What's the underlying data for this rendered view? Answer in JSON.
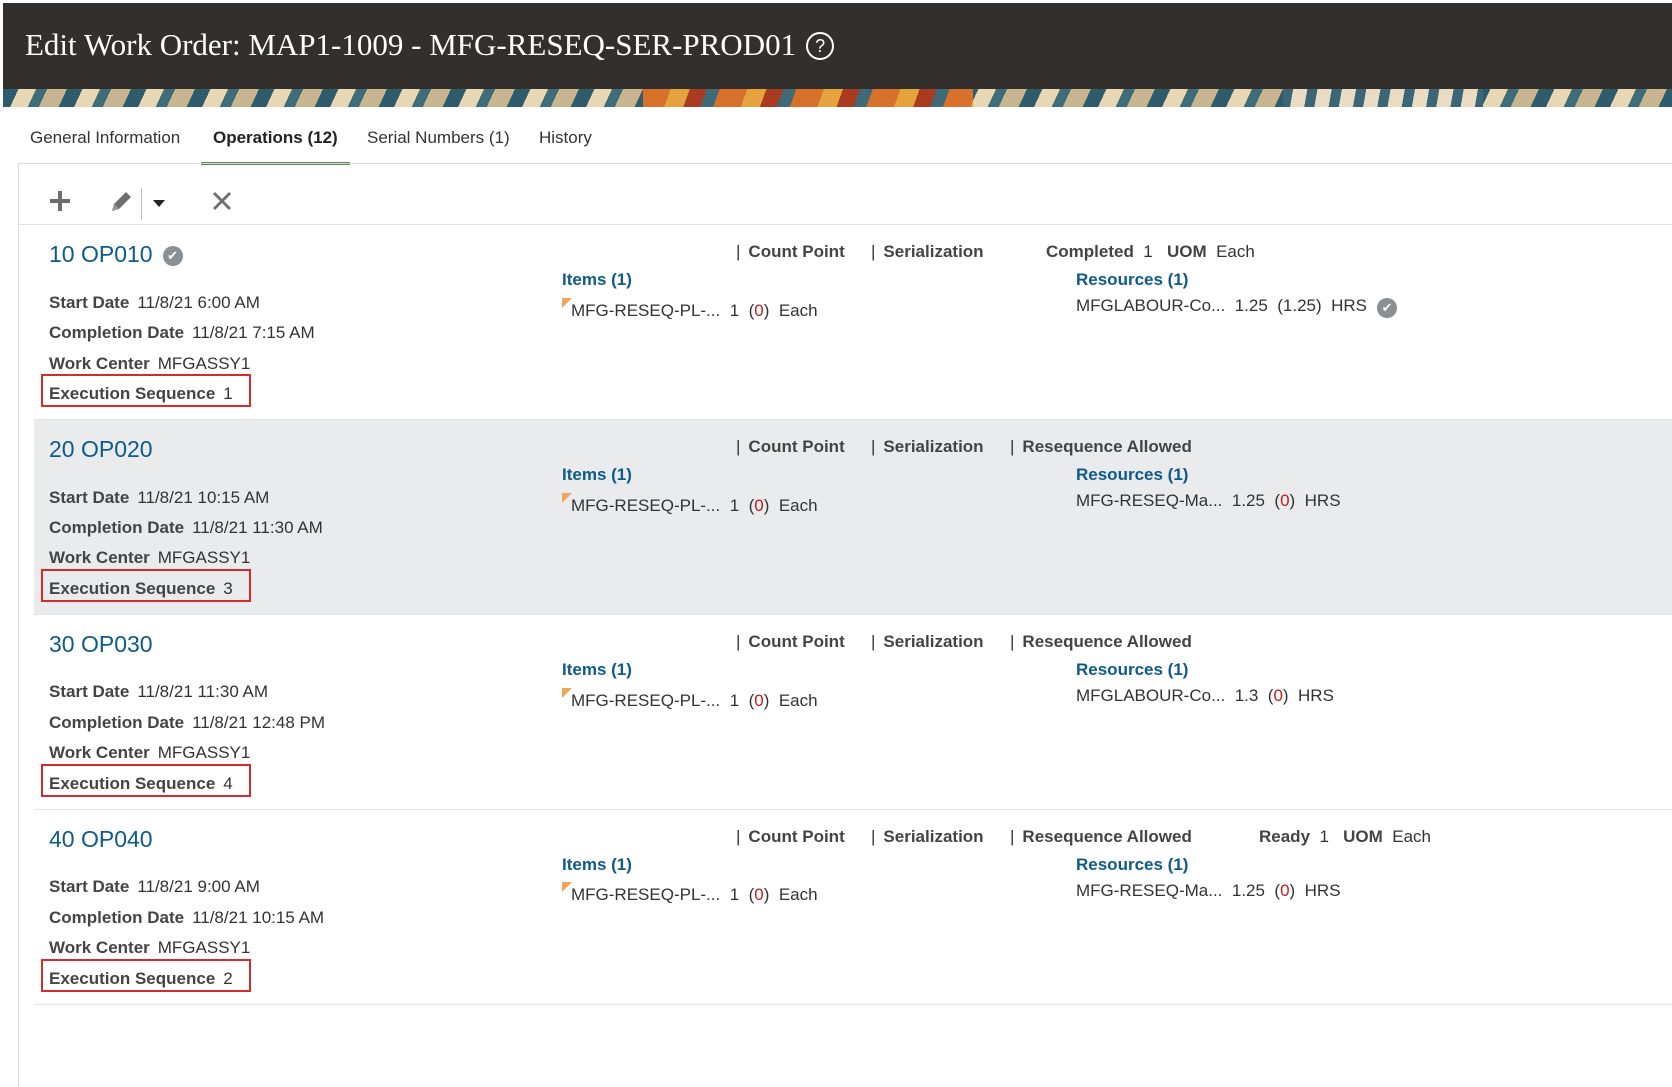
{
  "header": {
    "title": "Edit Work Order: MAP1-1009 - MFG-RESEQ-SER-PROD01",
    "help_icon": "?"
  },
  "tabs": [
    {
      "label": "General Information"
    },
    {
      "label": "Operations (12)"
    },
    {
      "label": "Serial Numbers (1)"
    },
    {
      "label": "History"
    }
  ],
  "labels": {
    "start_date": "Start Date",
    "completion_date": "Completion Date",
    "work_center": "Work Center",
    "execution_sequence": "Execution Sequence",
    "count_point": "Count Point",
    "serialization": "Serialization",
    "resequence_allowed": "Resequence Allowed",
    "uom": "UOM",
    "separator": "|"
  },
  "operations": [
    {
      "title": "10 OP010",
      "completed_icon": true,
      "start_date": "11/8/21 6:00 AM",
      "completion_date": "11/8/21 7:15 AM",
      "work_center": "MFGASSY1",
      "execution_sequence": "1",
      "resequence": false,
      "status_label": "Completed",
      "status_qty": "1",
      "status_uom": "Each",
      "items_label": "Items (1)",
      "item_name": "MFG-RESEQ-PL-...",
      "item_qty": "1",
      "item_open_qty": "0",
      "item_uom": "Each",
      "resources_label": "Resources (1)",
      "resource_name": "MFGLABOUR-Co...",
      "resource_qty": "1.25",
      "resource_open_qty": "1.25",
      "resource_uom": "HRS",
      "resource_done": true
    },
    {
      "title": "20 OP020",
      "completed_icon": false,
      "start_date": "11/8/21 10:15 AM",
      "completion_date": "11/8/21 11:30 AM",
      "work_center": "MFGASSY1",
      "execution_sequence": "3",
      "resequence": true,
      "items_label": "Items (1)",
      "item_name": "MFG-RESEQ-PL-...",
      "item_qty": "1",
      "item_open_qty": "0",
      "item_uom": "Each",
      "resources_label": "Resources (1)",
      "resource_name": "MFG-RESEQ-Ma...",
      "resource_qty": "1.25",
      "resource_open_qty": "0",
      "resource_uom": "HRS",
      "resource_done": false
    },
    {
      "title": "30 OP030",
      "completed_icon": false,
      "start_date": "11/8/21 11:30 AM",
      "completion_date": "11/8/21 12:48 PM",
      "work_center": "MFGASSY1",
      "execution_sequence": "4",
      "resequence": true,
      "items_label": "Items (1)",
      "item_name": "MFG-RESEQ-PL-...",
      "item_qty": "1",
      "item_open_qty": "0",
      "item_uom": "Each",
      "resources_label": "Resources (1)",
      "resource_name": "MFGLABOUR-Co...",
      "resource_qty": "1.3",
      "resource_open_qty": "0",
      "resource_uom": "HRS",
      "resource_done": false
    },
    {
      "title": "40 OP040",
      "completed_icon": false,
      "start_date": "11/8/21 9:00 AM",
      "completion_date": "11/8/21 10:15 AM",
      "work_center": "MFGASSY1",
      "execution_sequence": "2",
      "resequence": true,
      "status_label": "Ready",
      "status_qty": "1",
      "status_uom": "Each",
      "items_label": "Items (1)",
      "item_name": "MFG-RESEQ-PL-...",
      "item_qty": "1",
      "item_open_qty": "0",
      "item_uom": "Each",
      "resources_label": "Resources (1)",
      "resource_name": "MFG-RESEQ-Ma...",
      "resource_qty": "1.25",
      "resource_open_qty": "0",
      "resource_uom": "HRS",
      "resource_done": false
    }
  ]
}
